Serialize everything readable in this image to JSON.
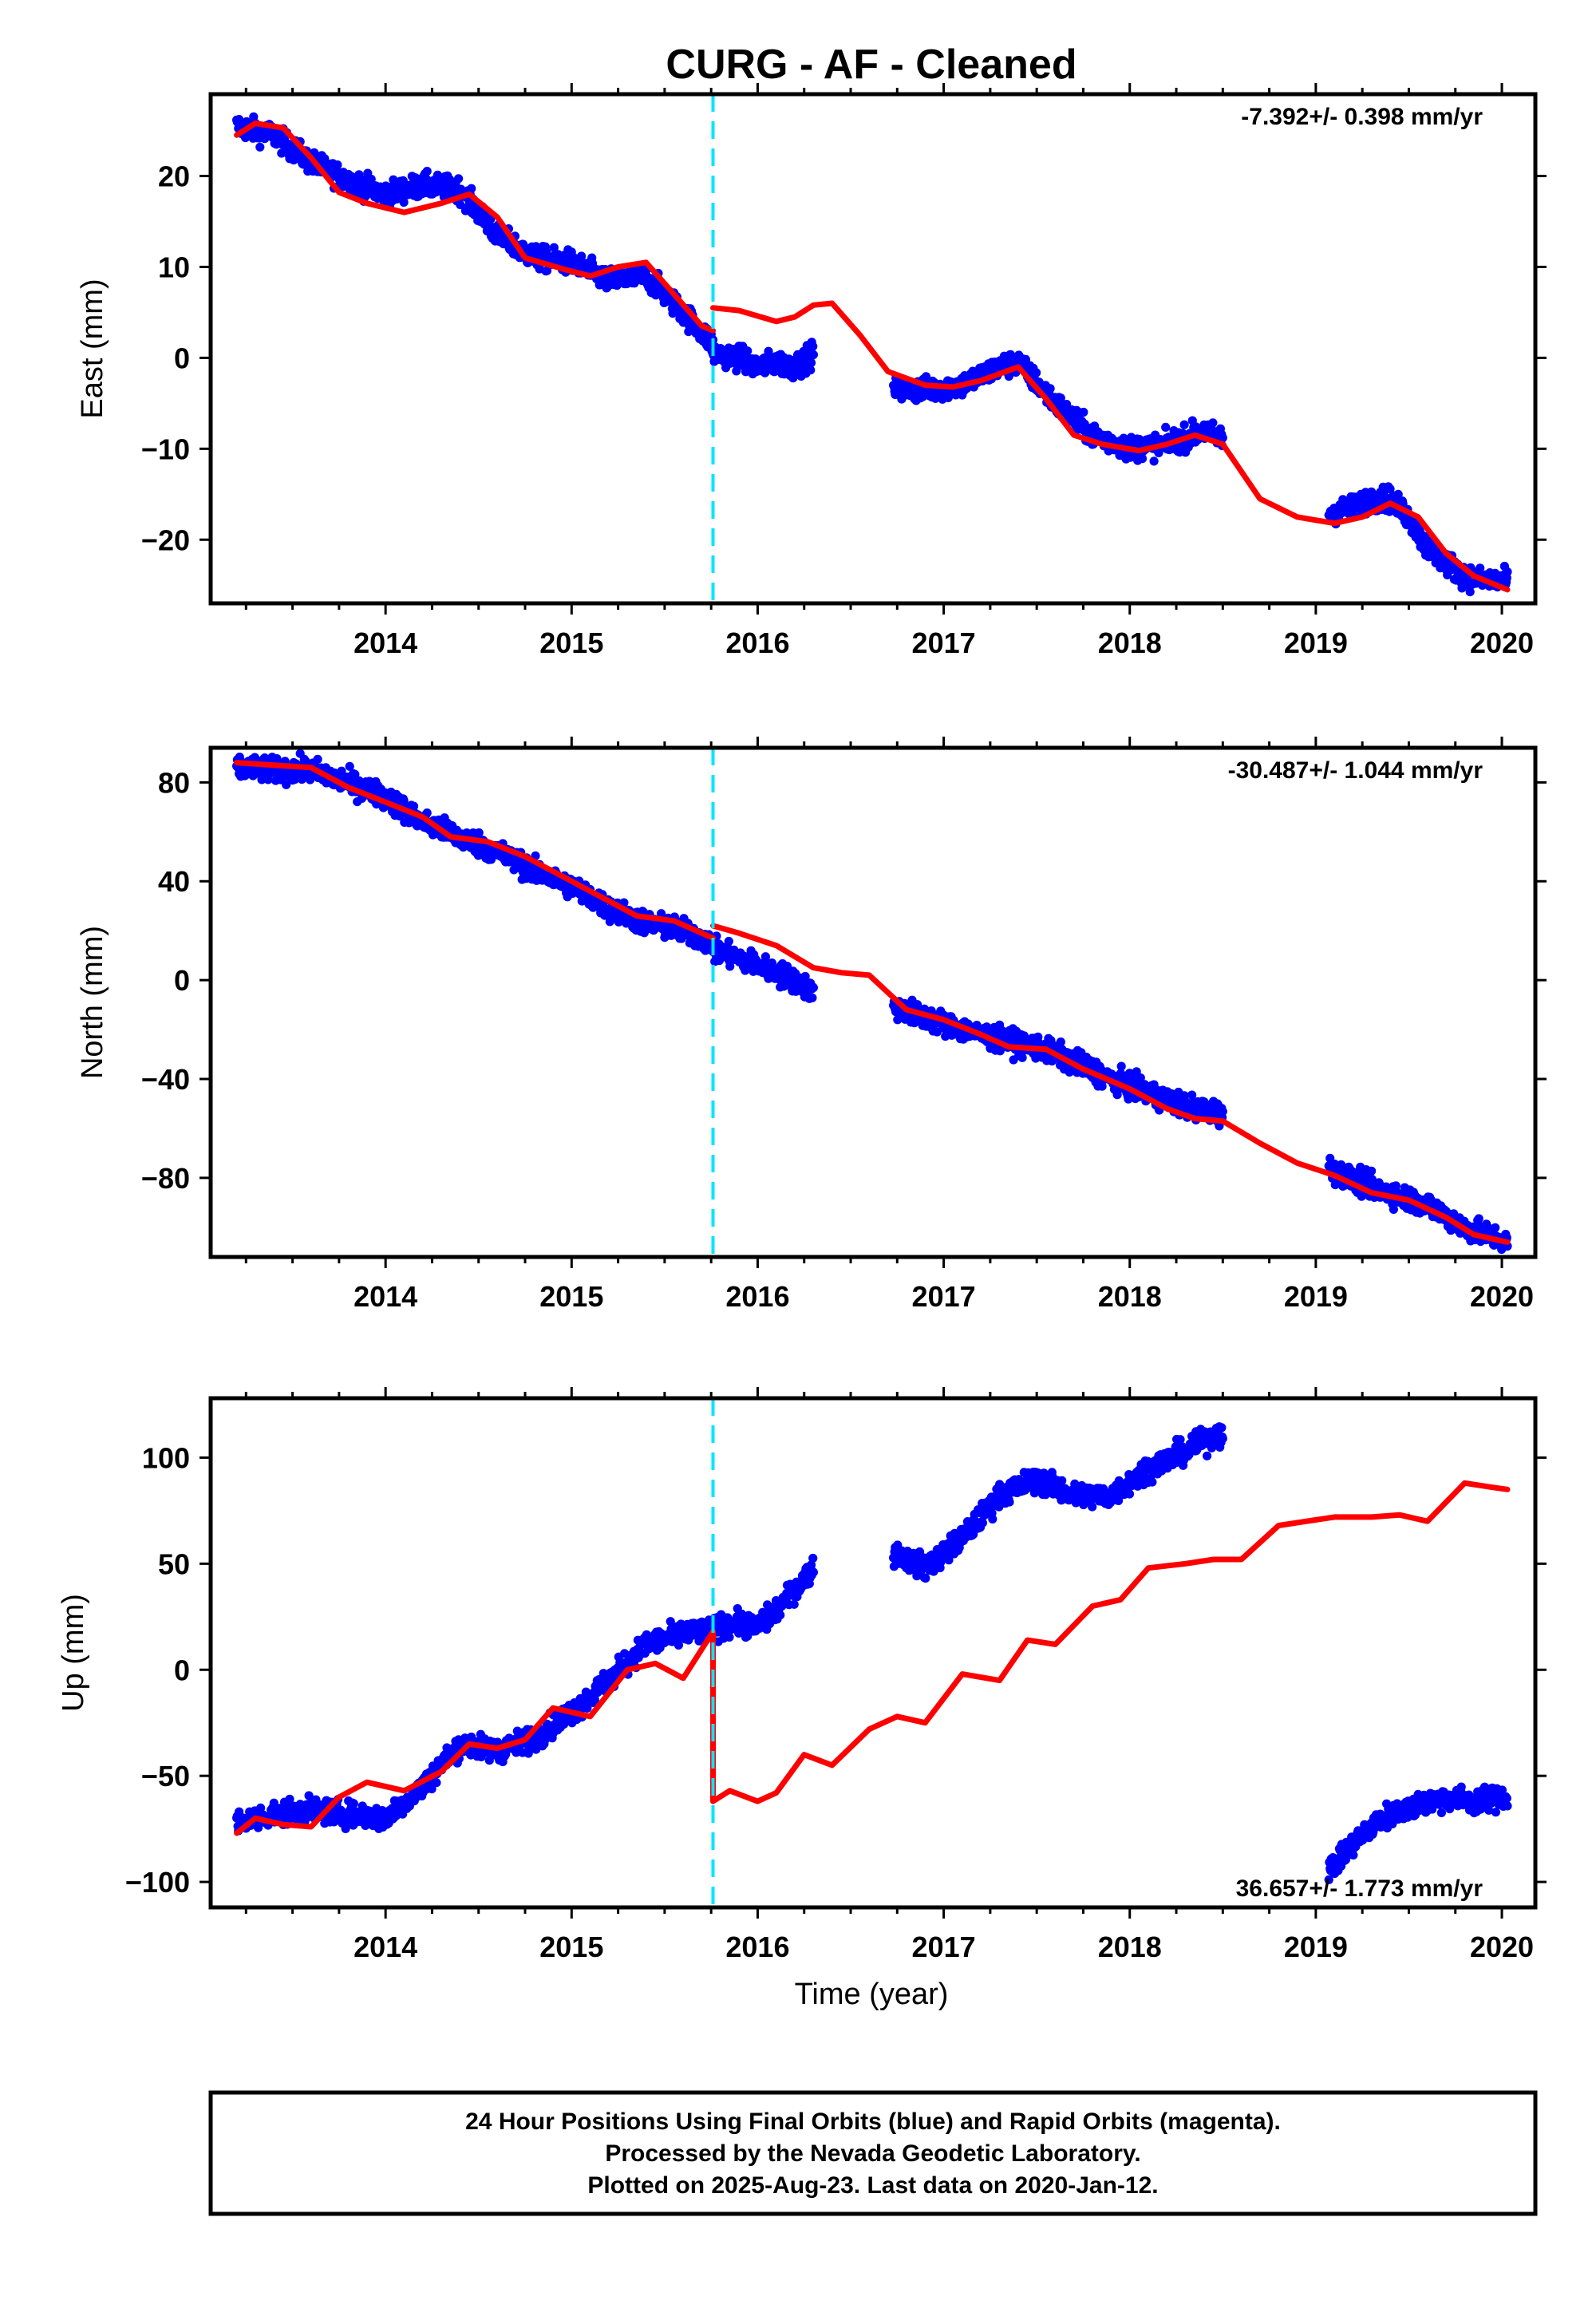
{
  "chart_data": {
    "type": "scatter",
    "title": "CURG  - AF - Cleaned",
    "xlabel": "Time (year)",
    "xlim": [
      2013.06,
      2020.18
    ],
    "x_ticks": [
      2014,
      2015,
      2016,
      2017,
      2018,
      2019,
      2020
    ],
    "x_tick_labels": [
      "2014",
      "2015",
      "2016",
      "2017",
      "2018",
      "2019",
      "2020"
    ],
    "equipment_change_year": 2015.76,
    "colors": {
      "observed": "#0000ff",
      "model": "#ff0000",
      "step": "#00e5ff"
    },
    "panels": [
      {
        "ylabel": "East (mm)",
        "ylim": [
          -27,
          29
        ],
        "y_ticks": [
          20,
          10,
          0,
          -10,
          -20
        ],
        "y_tick_labels": [
          "20",
          "10",
          "0",
          "−10",
          "−20"
        ],
        "rate": "-7.392+/- 0.398 mm/yr",
        "rate_position": "top-right",
        "series": [
          {
            "kind": "observed",
            "segments": [
              {
                "x": [
                  2013.2,
                  2013.4,
                  2013.6,
                  2013.8,
                  2014.0,
                  2014.2,
                  2014.4,
                  2014.6,
                  2014.8,
                  2015.0,
                  2015.2,
                  2015.4,
                  2015.6,
                  2015.76
                ],
                "y": [
                  25.5,
                  24.5,
                  21.5,
                  19.5,
                  18.0,
                  19.0,
                  18.5,
                  13.5,
                  11.0,
                  10.5,
                  8.5,
                  9.0,
                  5.0,
                  1.5
                ]
              },
              {
                "x": [
                  2015.76,
                  2015.9,
                  2016.0,
                  2016.1,
                  2016.2,
                  2016.3
                ],
                "y": [
                  0.5,
                  0.0,
                  -1.0,
                  -0.5,
                  -1.0,
                  0.5
                ]
              },
              {
                "x": [
                  2016.73,
                  2016.9,
                  2017.1,
                  2017.3,
                  2017.4,
                  2017.6,
                  2017.8,
                  2018.0,
                  2018.2,
                  2018.4,
                  2018.5
                ],
                "y": [
                  -3.5,
                  -3.5,
                  -3.0,
                  -1.0,
                  -0.5,
                  -5.0,
                  -8.5,
                  -10.0,
                  -9.5,
                  -8.0,
                  -9.0
                ]
              },
              {
                "x": [
                  2019.07,
                  2019.2,
                  2019.3,
                  2019.4,
                  2019.5,
                  2019.6,
                  2019.7,
                  2019.8,
                  2019.9,
                  2020.03
                ],
                "y": [
                  -17.0,
                  -16.5,
                  -15.5,
                  -15.5,
                  -17.5,
                  -21.0,
                  -22.5,
                  -24.0,
                  -24.5,
                  -24.5
                ]
              }
            ]
          },
          {
            "kind": "model",
            "segments": [
              {
                "x": [
                  2013.2,
                  2013.3,
                  2013.45,
                  2013.6,
                  2013.75,
                  2013.9,
                  2014.1,
                  2014.3,
                  2014.45,
                  2014.6,
                  2014.75,
                  2014.95,
                  2015.1,
                  2015.25,
                  2015.4,
                  2015.55,
                  2015.7,
                  2015.76
                ],
                "y": [
                  24.5,
                  25.8,
                  25.3,
                  22.0,
                  18.2,
                  17.0,
                  16.0,
                  17.0,
                  18.0,
                  15.5,
                  11.0,
                  9.8,
                  9.0,
                  10.0,
                  10.5,
                  7.0,
                  3.5,
                  3.0
                ]
              },
              {
                "x": [
                  2015.76,
                  2015.9,
                  2016.1,
                  2016.2,
                  2016.3,
                  2016.4,
                  2016.55,
                  2016.7,
                  2016.9,
                  2017.05,
                  2017.2,
                  2017.4,
                  2017.55,
                  2017.7,
                  2017.85,
                  2018.05,
                  2018.2,
                  2018.35,
                  2018.5,
                  2018.7,
                  2018.9,
                  2019.1,
                  2019.25,
                  2019.4,
                  2019.55,
                  2019.7,
                  2019.85,
                  2020.03
                ],
                "y": [
                  5.5,
                  5.2,
                  4.0,
                  4.5,
                  5.8,
                  6.0,
                  2.5,
                  -1.5,
                  -3.0,
                  -3.2,
                  -2.5,
                  -1.0,
                  -4.5,
                  -8.5,
                  -9.5,
                  -10.2,
                  -9.5,
                  -8.5,
                  -9.5,
                  -15.5,
                  -17.5,
                  -18.2,
                  -17.5,
                  -16.0,
                  -17.5,
                  -21.5,
                  -24.0,
                  -25.5
                ]
              }
            ]
          }
        ]
      },
      {
        "ylabel": "North (mm)",
        "ylim": [
          -112,
          94
        ],
        "y_ticks": [
          80,
          40,
          0,
          -40,
          -80
        ],
        "y_tick_labels": [
          "80",
          "40",
          "0",
          "−40",
          "−80"
        ],
        "rate": "-30.487+/- 1.044 mm/yr",
        "rate_position": "top-right",
        "series": [
          {
            "kind": "observed",
            "segments": [
              {
                "x": [
                  2013.2,
                  2013.4,
                  2013.6,
                  2013.8,
                  2014.0,
                  2014.2,
                  2014.4,
                  2014.6,
                  2014.8,
                  2015.0,
                  2015.2,
                  2015.4,
                  2015.6,
                  2015.76
                ],
                "y": [
                  86,
                  85,
                  85,
                  80,
                  74,
                  64,
                  58,
                  52,
                  44,
                  38,
                  29,
                  23,
                  20,
                  15
                ]
              },
              {
                "x": [
                  2015.76,
                  2015.9,
                  2016.0,
                  2016.1,
                  2016.2,
                  2016.3
                ],
                "y": [
                  12,
                  9,
                  6,
                  3,
                  0,
                  -5
                ]
              },
              {
                "x": [
                  2016.73,
                  2016.9,
                  2017.1,
                  2017.3,
                  2017.5,
                  2017.7,
                  2017.9,
                  2018.1,
                  2018.3,
                  2018.5
                ],
                "y": [
                  -11,
                  -15,
                  -20,
                  -24,
                  -27,
                  -33,
                  -40,
                  -46,
                  -51,
                  -54
                ]
              },
              {
                "x": [
                  2019.07,
                  2019.2,
                  2019.4,
                  2019.6,
                  2019.8,
                  2020.03
                ],
                "y": [
                  -76,
                  -81,
                  -86,
                  -91,
                  -100,
                  -106
                ]
              }
            ]
          },
          {
            "kind": "model",
            "segments": [
              {
                "x": [
                  2013.2,
                  2013.4,
                  2013.6,
                  2013.8,
                  2014.0,
                  2014.2,
                  2014.35,
                  2014.55,
                  2014.75,
                  2015.0,
                  2015.2,
                  2015.35,
                  2015.55,
                  2015.7,
                  2015.76
                ],
                "y": [
                  88,
                  87,
                  86,
                  78,
                  72,
                  66,
                  58,
                  56,
                  50,
                  40,
                  32,
                  26,
                  24,
                  19,
                  17
                ]
              },
              {
                "x": [
                  2015.76,
                  2015.9,
                  2016.1,
                  2016.3,
                  2016.45,
                  2016.6,
                  2016.8,
                  2017.0,
                  2017.2,
                  2017.35,
                  2017.55,
                  2017.75,
                  2018.0,
                  2018.2,
                  2018.35,
                  2018.5,
                  2018.7,
                  2018.9,
                  2019.1,
                  2019.3,
                  2019.5,
                  2019.7,
                  2019.85,
                  2020.03
                ],
                "y": [
                  22,
                  19,
                  14,
                  5,
                  3,
                  2,
                  -12,
                  -16,
                  -22,
                  -27,
                  -28,
                  -36,
                  -44,
                  -52,
                  -56,
                  -57,
                  -66,
                  -74,
                  -79,
                  -86,
                  -89,
                  -96,
                  -103,
                  -106
                ]
              }
            ]
          }
        ]
      },
      {
        "ylabel": "Up (mm)",
        "ylim": [
          -112,
          128
        ],
        "y_ticks": [
          100,
          50,
          0,
          -50,
          -100
        ],
        "y_tick_labels": [
          "100",
          "50",
          "0",
          "−50",
          "−100"
        ],
        "rate": "36.657+/- 1.773 mm/yr",
        "rate_position": "bottom-right",
        "series": [
          {
            "kind": "observed",
            "segments": [
              {
                "x": [
                  2013.2,
                  2013.4,
                  2013.6,
                  2013.8,
                  2014.0,
                  2014.2,
                  2014.4,
                  2014.6,
                  2014.8,
                  2015.0,
                  2015.2,
                  2015.4,
                  2015.6,
                  2015.76
                ],
                "y": [
                  -72,
                  -68,
                  -66,
                  -68,
                  -70,
                  -55,
                  -35,
                  -38,
                  -32,
                  -20,
                  -5,
                  12,
                  17,
                  18
                ]
              },
              {
                "x": [
                  2015.76,
                  2015.9,
                  2016.0,
                  2016.1,
                  2016.2,
                  2016.3
                ],
                "y": [
                  20,
                  22,
                  20,
                  28,
                  38,
                  48
                ]
              },
              {
                "x": [
                  2016.73,
                  2016.9,
                  2017.1,
                  2017.3,
                  2017.5,
                  2017.7,
                  2017.9,
                  2018.1,
                  2018.3,
                  2018.5
                ],
                "y": [
                  55,
                  48,
                  62,
                  82,
                  90,
                  82,
                  82,
                  95,
                  103,
                  112
                ]
              },
              {
                "x": [
                  2019.07,
                  2019.2,
                  2019.35,
                  2019.5,
                  2019.7,
                  2019.85,
                  2020.03
                ],
                "y": [
                  -95,
                  -82,
                  -70,
                  -65,
                  -60,
                  -62,
                  -60
                ]
              }
            ]
          },
          {
            "kind": "model",
            "segments": [
              {
                "x": [
                  2013.2,
                  2013.3,
                  2013.45,
                  2013.6,
                  2013.75,
                  2013.9,
                  2014.1,
                  2014.3,
                  2014.45,
                  2014.6,
                  2014.75,
                  2014.9,
                  2015.1,
                  2015.3,
                  2015.45,
                  2015.6,
                  2015.76
                ],
                "y": [
                  -77,
                  -70,
                  -73,
                  -74,
                  -60,
                  -53,
                  -57,
                  -48,
                  -35,
                  -37,
                  -33,
                  -18,
                  -22,
                  0,
                  3,
                  -4,
                  18
                ]
              },
              {
                "x": [
                  2015.76,
                  2015.76,
                  2015.85,
                  2016.0,
                  2016.1,
                  2016.25,
                  2016.4,
                  2016.6,
                  2016.75,
                  2016.9,
                  2017.1,
                  2017.3,
                  2017.45,
                  2017.6,
                  2017.8,
                  2017.95,
                  2018.1,
                  2018.3,
                  2018.45,
                  2018.6,
                  2018.8,
                  2018.95,
                  2019.1,
                  2019.3,
                  2019.45,
                  2019.6,
                  2019.8,
                  2019.95,
                  2020.03
                ],
                "y": [
                  18,
                  -62,
                  -57,
                  -62,
                  -58,
                  -40,
                  -45,
                  -28,
                  -22,
                  -25,
                  -2,
                  -5,
                  14,
                  12,
                  30,
                  33,
                  48,
                  50,
                  52,
                  52,
                  68,
                  70,
                  72,
                  72,
                  73,
                  70,
                  88,
                  86,
                  85
                ]
              }
            ]
          }
        ]
      }
    ]
  },
  "footer": {
    "lines": [
      "24 Hour Positions Using Final Orbits (blue) and Rapid Orbits (magenta).",
      "Processed by the Nevada Geodetic Laboratory.",
      "Plotted on 2025-Aug-23. Last data on 2020-Jan-12."
    ]
  }
}
